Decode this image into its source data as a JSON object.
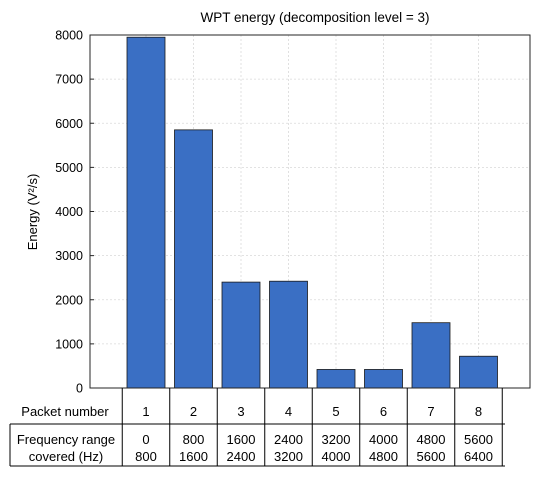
{
  "chart_data": {
    "type": "bar",
    "title": "WPT energy (decomposition level = 3)",
    "ylabel": "Energy (V²/s)",
    "xlabel": "",
    "ylim": [
      0,
      8000
    ],
    "yticks": [
      0,
      1000,
      2000,
      3000,
      4000,
      5000,
      6000,
      7000,
      8000
    ],
    "grid": true,
    "categories": [
      "1",
      "2",
      "3",
      "4",
      "5",
      "6",
      "7",
      "8"
    ],
    "values": [
      7950,
      5850,
      2400,
      2420,
      420,
      420,
      1480,
      720
    ],
    "bar_color": "#3a6fc4"
  },
  "table": {
    "row1_label": "Packet number",
    "row2_label_line1": "Frequency range",
    "row2_label_line2": "covered (Hz)",
    "packet_numbers": [
      "1",
      "2",
      "3",
      "4",
      "5",
      "6",
      "7",
      "8"
    ],
    "freq_low": [
      "0",
      "800",
      "1600",
      "2400",
      "3200",
      "4000",
      "4800",
      "5600"
    ],
    "freq_high": [
      "800",
      "1600",
      "2400",
      "3200",
      "4000",
      "4800",
      "5600",
      "6400"
    ]
  }
}
